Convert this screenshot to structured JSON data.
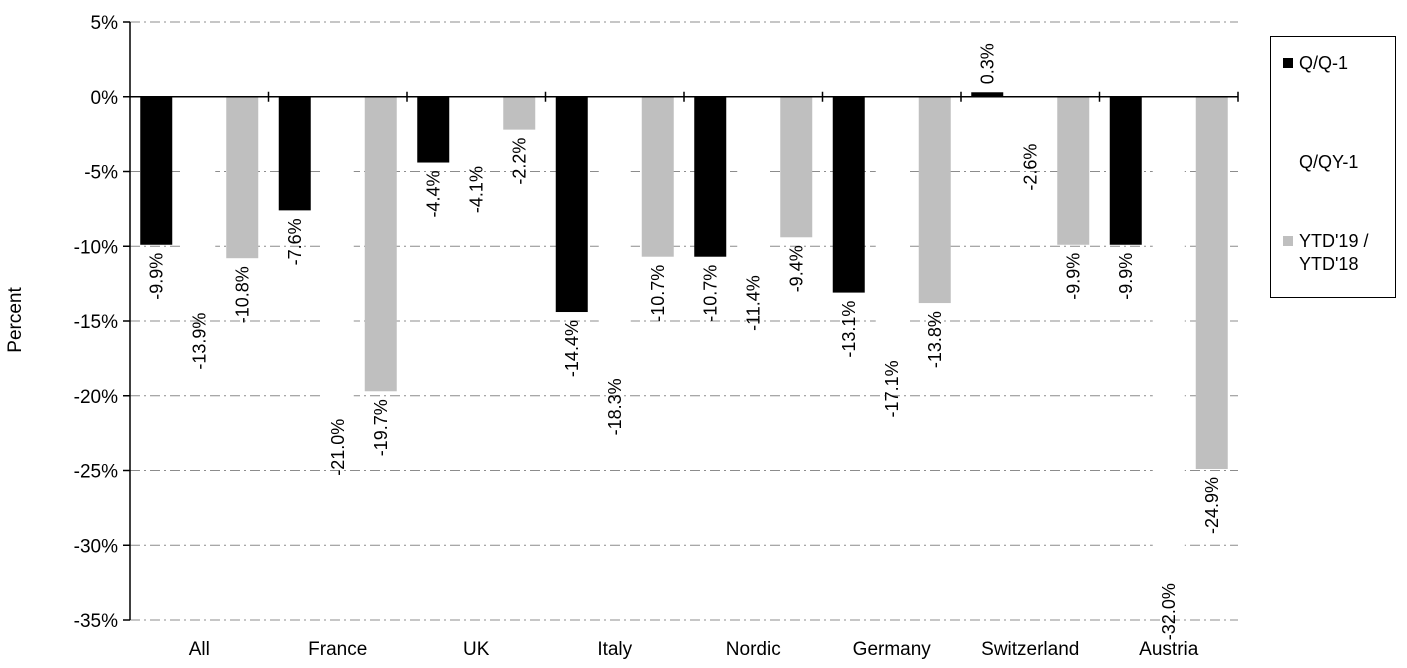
{
  "chart_data": {
    "type": "bar",
    "title": "",
    "xlabel": "",
    "ylabel": "Percent",
    "ylim": [
      -35,
      5
    ],
    "ytick_step": 5,
    "grid": true,
    "legend_position": "right",
    "categories": [
      "All",
      "France",
      "UK",
      "Italy",
      "Nordic",
      "Germany",
      "Switzerland",
      "Austria"
    ],
    "series": [
      {
        "name": "Q/Q-1",
        "color": "#000000",
        "values": [
          -9.9,
          -7.6,
          -4.4,
          -14.4,
          -10.7,
          -13.1,
          0.3,
          -9.9
        ]
      },
      {
        "name": "Q/QY-1",
        "color": "#ffffff",
        "values": [
          -13.9,
          -21.0,
          -4.1,
          -18.3,
          -11.4,
          -17.1,
          -2.6,
          -32.0
        ]
      },
      {
        "name": "YTD'19 / YTD'18",
        "color": "#bfbfbf",
        "values": [
          -10.8,
          -19.7,
          -2.2,
          -10.7,
          -9.4,
          -13.8,
          -9.9,
          -24.9
        ]
      }
    ]
  }
}
